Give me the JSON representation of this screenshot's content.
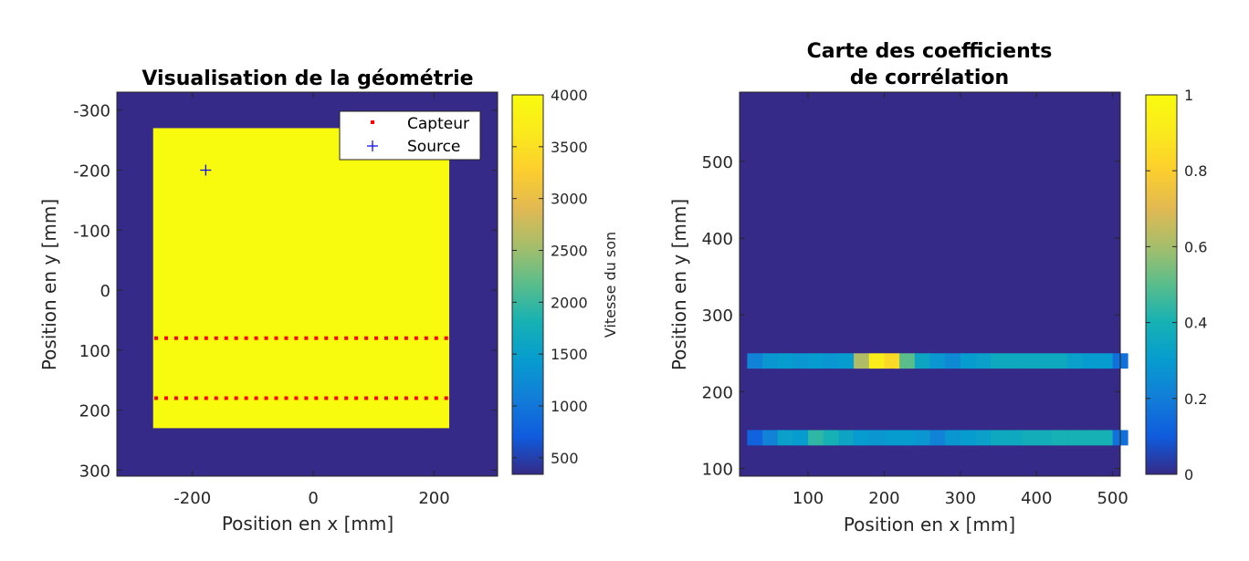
{
  "chart_data": [
    {
      "type": "heatmap",
      "title": "Visualisation de la géométrie",
      "xlabel": "Position en x [mm]",
      "ylabel": "Position en y [mm]",
      "xlim": [
        -325,
        305
      ],
      "ylim": [
        -330,
        310
      ],
      "y_reversed": true,
      "xticks": [
        "-200",
        "0",
        "200"
      ],
      "yticks": [
        "-300",
        "-200",
        "-100",
        "0",
        "100",
        "200",
        "300"
      ],
      "colormap": "parula",
      "background_value": 340,
      "block": {
        "x_range": [
          -265,
          225
        ],
        "y_range": [
          -270,
          230
        ],
        "value": 4000
      },
      "colorbar": {
        "label": "Vitesse du son",
        "range": [
          340,
          4000
        ],
        "ticks": [
          "500",
          "1000",
          "1500",
          "2000",
          "2500",
          "3000",
          "3500",
          "4000"
        ]
      },
      "series": [
        {
          "name": "Capteur",
          "marker": "dot",
          "color": "#ff0000",
          "y_rows": [
            80,
            180
          ],
          "x_range": [
            -260,
            220
          ],
          "count_per_row": 30
        },
        {
          "name": "Source",
          "marker": "plus",
          "color": "#0000ff",
          "points": [
            [
              -178,
              -200
            ]
          ]
        }
      ],
      "legend": {
        "position": "top-right",
        "entries": [
          "Capteur",
          "Source"
        ]
      }
    },
    {
      "type": "heatmap",
      "title": "Carte des coefficients\nde corrélation",
      "title_lines": [
        "Carte des coefficients",
        "de corrélation"
      ],
      "xlabel": "Position en x [mm]",
      "ylabel": "Position en y [mm]",
      "xlim": [
        10,
        510
      ],
      "ylim": [
        90,
        590
      ],
      "xticks": [
        "100",
        "200",
        "300",
        "400",
        "500"
      ],
      "yticks": [
        "100",
        "200",
        "300",
        "400",
        "500"
      ],
      "colormap": "parula",
      "background_value": 0,
      "cell_width": 20,
      "rows": [
        {
          "y_range": [
            230,
            250
          ],
          "x_start": 20,
          "values": [
            0.22,
            0.28,
            0.3,
            0.28,
            0.3,
            0.28,
            0.3,
            0.62,
            0.92,
            0.84,
            0.5,
            0.34,
            0.28,
            0.24,
            0.3,
            0.32,
            0.36,
            0.36,
            0.36,
            0.36,
            0.36,
            0.32,
            0.3,
            0.3,
            0.16
          ]
        },
        {
          "y_range": [
            130,
            150
          ],
          "x_start": 20,
          "values": [
            0.12,
            0.22,
            0.32,
            0.3,
            0.44,
            0.4,
            0.34,
            0.3,
            0.28,
            0.3,
            0.3,
            0.28,
            0.22,
            0.28,
            0.3,
            0.32,
            0.36,
            0.36,
            0.38,
            0.38,
            0.4,
            0.4,
            0.4,
            0.4,
            0.16
          ]
        }
      ],
      "colorbar": {
        "range": [
          0,
          1
        ],
        "ticks": [
          "0",
          "0.2",
          "0.4",
          "0.6",
          "0.8",
          "1"
        ]
      }
    }
  ]
}
